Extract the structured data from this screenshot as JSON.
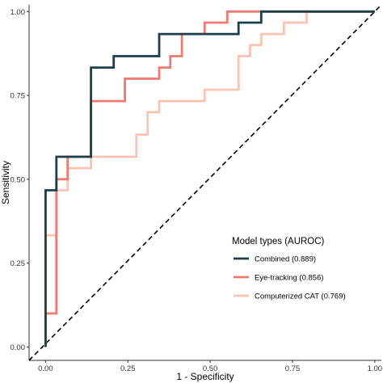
{
  "chart_data": {
    "type": "line",
    "xlabel": "1 - Specificity",
    "ylabel": "Sensitivity",
    "xlim": [
      -0.05,
      1.02
    ],
    "ylim": [
      -0.04,
      1.02
    ],
    "x_ticks": [
      0.0,
      0.25,
      0.5,
      0.75,
      1.0
    ],
    "y_ticks": [
      0.0,
      0.25,
      0.5,
      0.75,
      1.0
    ],
    "x_tick_labels": [
      "0.00",
      "0.25",
      "0.50",
      "0.75",
      "1.00"
    ],
    "y_tick_labels": [
      "0.00",
      "0.25",
      "0.50",
      "0.75",
      "1.00"
    ],
    "grid": false,
    "reference_line": {
      "style": "dashed",
      "color": "#000000",
      "from": [
        -0.05,
        -0.04
      ],
      "to": [
        1.02,
        1.02
      ]
    },
    "legend": {
      "title": "Model types (AUROC)",
      "position": "bottom-right-inside"
    },
    "series": [
      {
        "name": "Computerized CAT (0.769)",
        "color": "#f9c4b4",
        "points": [
          [
            0,
            0
          ],
          [
            0,
            0.333
          ],
          [
            0.033,
            0.333
          ],
          [
            0.033,
            0.467
          ],
          [
            0.067,
            0.467
          ],
          [
            0.067,
            0.533
          ],
          [
            0.138,
            0.533
          ],
          [
            0.138,
            0.567
          ],
          [
            0.276,
            0.567
          ],
          [
            0.276,
            0.633
          ],
          [
            0.31,
            0.633
          ],
          [
            0.31,
            0.7
          ],
          [
            0.345,
            0.7
          ],
          [
            0.345,
            0.733
          ],
          [
            0.483,
            0.733
          ],
          [
            0.483,
            0.767
          ],
          [
            0.586,
            0.767
          ],
          [
            0.586,
            0.867
          ],
          [
            0.621,
            0.867
          ],
          [
            0.621,
            0.9
          ],
          [
            0.655,
            0.9
          ],
          [
            0.655,
            0.933
          ],
          [
            0.724,
            0.933
          ],
          [
            0.724,
            0.967
          ],
          [
            0.793,
            0.967
          ],
          [
            0.793,
            1.0
          ],
          [
            1.0,
            1.0
          ]
        ]
      },
      {
        "name": "Eye-tracking (0.856)",
        "color": "#ee7a72",
        "points": [
          [
            0,
            0
          ],
          [
            0,
            0.1
          ],
          [
            0.033,
            0.1
          ],
          [
            0.033,
            0.5
          ],
          [
            0.067,
            0.5
          ],
          [
            0.067,
            0.567
          ],
          [
            0.138,
            0.567
          ],
          [
            0.138,
            0.733
          ],
          [
            0.241,
            0.733
          ],
          [
            0.241,
            0.8
          ],
          [
            0.345,
            0.8
          ],
          [
            0.345,
            0.833
          ],
          [
            0.379,
            0.833
          ],
          [
            0.379,
            0.867
          ],
          [
            0.414,
            0.867
          ],
          [
            0.414,
            0.933
          ],
          [
            0.483,
            0.933
          ],
          [
            0.483,
            0.967
          ],
          [
            0.552,
            0.967
          ],
          [
            0.552,
            1.0
          ],
          [
            1.0,
            1.0
          ]
        ]
      },
      {
        "name": "Combined (0.889)",
        "color": "#1c3f4a",
        "points": [
          [
            0,
            0
          ],
          [
            0,
            0.333
          ],
          [
            0,
            0.467
          ],
          [
            0.033,
            0.467
          ],
          [
            0.033,
            0.567
          ],
          [
            0.067,
            0.567
          ],
          [
            0.067,
            0.567
          ],
          [
            0.138,
            0.567
          ],
          [
            0.138,
            0.833
          ],
          [
            0.207,
            0.833
          ],
          [
            0.207,
            0.867
          ],
          [
            0.345,
            0.867
          ],
          [
            0.345,
            0.933
          ],
          [
            0.586,
            0.933
          ],
          [
            0.586,
            0.967
          ],
          [
            0.655,
            0.967
          ],
          [
            0.655,
            1.0
          ],
          [
            1.0,
            1.0
          ]
        ]
      }
    ],
    "legend_order": [
      "Combined (0.889)",
      "Eye-tracking (0.856)",
      "Computerized CAT (0.769)"
    ]
  }
}
